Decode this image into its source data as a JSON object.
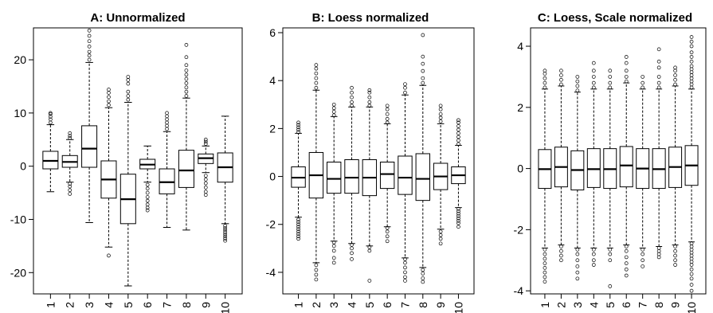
{
  "chart_data": [
    {
      "type": "boxplot",
      "title": "A: Unnormalized",
      "ylim": [
        -24,
        26
      ],
      "yticks": [
        -20,
        -10,
        0,
        10,
        20
      ],
      "categories": [
        "1",
        "2",
        "3",
        "4",
        "5",
        "6",
        "7",
        "8",
        "9",
        "10"
      ],
      "boxes": [
        {
          "q1": -0.5,
          "med": 1.0,
          "q3": 2.8,
          "lo": -4.8,
          "hi": 7.8,
          "out_lo": [],
          "out_hi": [
            8.2,
            8.8,
            9.3,
            9.8,
            10.0
          ]
        },
        {
          "q1": -0.2,
          "med": 0.8,
          "q3": 2.0,
          "lo": -3.0,
          "hi": 5.0,
          "out_lo": [
            -3.3,
            -3.8,
            -4.5,
            -5.2
          ],
          "out_hi": [
            5.3,
            5.7,
            6.2
          ]
        },
        {
          "q1": -0.2,
          "med": 3.3,
          "q3": 7.6,
          "lo": -10.6,
          "hi": 19.5,
          "out_lo": [],
          "out_hi": [
            20.0,
            20.8,
            21.5,
            22.5,
            23.5,
            24.5,
            25.5
          ]
        },
        {
          "q1": -6.0,
          "med": -2.5,
          "q3": 1.0,
          "lo": -15.2,
          "hi": 11.0,
          "out_lo": [
            -16.8
          ],
          "out_hi": [
            11.5,
            12.2,
            13.0,
            13.8,
            14.4
          ]
        },
        {
          "q1": -10.8,
          "med": -6.2,
          "q3": -1.5,
          "lo": -22.5,
          "hi": 12.0,
          "out_lo": [],
          "out_hi": [
            12.5,
            13.2,
            14.0,
            15.5,
            16.2,
            16.8
          ]
        },
        {
          "q1": -0.5,
          "med": 0.3,
          "q3": 1.3,
          "lo": -3.0,
          "hi": 3.8,
          "out_lo": [
            -3.5,
            -4.2,
            -5.0,
            -5.8,
            -6.5,
            -7.2,
            -7.8,
            -8.3
          ],
          "out_hi": []
        },
        {
          "q1": -5.2,
          "med": -3.0,
          "q3": -0.5,
          "lo": -11.5,
          "hi": 6.5,
          "out_lo": [],
          "out_hi": [
            7.0,
            7.6,
            8.2,
            8.8,
            9.4,
            10.0
          ]
        },
        {
          "q1": -4.0,
          "med": -0.8,
          "q3": 3.0,
          "lo": -12.0,
          "hi": 12.8,
          "out_lo": [],
          "out_hi": [
            13.2,
            14.0,
            14.8,
            15.6,
            16.4,
            17.2,
            18.0,
            19.0,
            20.5,
            22.8
          ]
        },
        {
          "q1": 0.5,
          "med": 1.5,
          "q3": 2.3,
          "lo": -1.2,
          "hi": 3.8,
          "out_lo": [
            -1.8,
            -2.5,
            -3.2,
            -4.0,
            -4.8,
            -5.4
          ],
          "out_hi": [
            4.2,
            4.6,
            5.0
          ]
        },
        {
          "q1": -3.0,
          "med": -0.2,
          "q3": 2.5,
          "lo": -10.8,
          "hi": 9.4,
          "out_lo": [
            -11.2,
            -11.6,
            -12.0,
            -12.4,
            -12.8,
            -13.2,
            -13.6,
            -14.0
          ],
          "out_hi": []
        }
      ]
    },
    {
      "type": "boxplot",
      "title": "B: Loess normalized",
      "ylim": [
        -4.9,
        6.2
      ],
      "yticks": [
        -4,
        -2,
        0,
        2,
        4,
        6
      ],
      "categories": [
        "1",
        "2",
        "3",
        "4",
        "5",
        "6",
        "7",
        "8",
        "9",
        "10"
      ],
      "boxes": [
        {
          "q1": -0.45,
          "med": -0.05,
          "q3": 0.4,
          "lo": -1.7,
          "hi": 1.8,
          "out_lo": [
            -1.8,
            -1.9,
            -2.0,
            -2.1,
            -2.2,
            -2.3,
            -2.4,
            -2.5,
            -2.6
          ],
          "out_hi": [
            1.85,
            1.95,
            2.05,
            2.15,
            2.25
          ]
        },
        {
          "q1": -0.9,
          "med": 0.05,
          "q3": 1.0,
          "lo": -3.6,
          "hi": 3.6,
          "out_lo": [
            -3.7,
            -3.9,
            -4.1,
            -4.3
          ],
          "out_hi": [
            3.7,
            3.9,
            4.1,
            4.3,
            4.5,
            4.65
          ]
        },
        {
          "q1": -0.7,
          "med": -0.1,
          "q3": 0.6,
          "lo": -2.7,
          "hi": 2.5,
          "out_lo": [
            -2.75,
            -2.9,
            -3.1,
            -3.4,
            -3.6
          ],
          "out_hi": [
            2.55,
            2.7,
            2.85,
            3.0
          ]
        },
        {
          "q1": -0.7,
          "med": -0.05,
          "q3": 0.7,
          "lo": -2.8,
          "hi": 2.9,
          "out_lo": [
            -2.85,
            -3.0,
            -3.2,
            -3.45
          ],
          "out_hi": [
            2.95,
            3.1,
            3.3,
            3.5,
            3.7
          ]
        },
        {
          "q1": -0.8,
          "med": -0.05,
          "q3": 0.7,
          "lo": -2.9,
          "hi": 2.9,
          "out_lo": [
            -2.95,
            -3.1,
            -4.35
          ],
          "out_hi": [
            2.95,
            3.1,
            3.3,
            3.5,
            3.6
          ]
        },
        {
          "q1": -0.5,
          "med": 0.1,
          "q3": 0.6,
          "lo": -2.1,
          "hi": 2.2,
          "out_lo": [
            -2.15,
            -2.3,
            -2.5,
            -2.7
          ],
          "out_hi": [
            2.25,
            2.4,
            2.6,
            2.8,
            2.95
          ]
        },
        {
          "q1": -0.75,
          "med": -0.05,
          "q3": 0.85,
          "lo": -3.4,
          "hi": 3.4,
          "out_lo": [
            -3.45,
            -3.6,
            -3.8,
            -4.0,
            -4.2,
            -4.35
          ],
          "out_hi": [
            3.5,
            3.7,
            3.85
          ]
        },
        {
          "q1": -1.0,
          "med": -0.1,
          "q3": 0.95,
          "lo": -3.8,
          "hi": 3.8,
          "out_lo": [
            -3.9,
            -4.05,
            -4.25,
            -4.4
          ],
          "out_hi": [
            3.9,
            4.1,
            4.4,
            4.7,
            5.0,
            5.9
          ]
        },
        {
          "q1": -0.55,
          "med": 0.0,
          "q3": 0.55,
          "lo": -2.2,
          "hi": 2.2,
          "out_lo": [
            -2.3,
            -2.45,
            -2.6,
            -2.8
          ],
          "out_hi": [
            2.3,
            2.45,
            2.6,
            2.8,
            2.95
          ]
        },
        {
          "q1": -0.3,
          "med": 0.05,
          "q3": 0.4,
          "lo": -1.3,
          "hi": 1.3,
          "out_lo": [
            -1.35,
            -1.45,
            -1.55,
            -1.65,
            -1.75,
            -1.85,
            -1.95,
            -2.1
          ],
          "out_hi": [
            1.35,
            1.5,
            1.65,
            1.8,
            1.95,
            2.1,
            2.25,
            2.35
          ]
        }
      ]
    },
    {
      "type": "boxplot",
      "title": "C: Loess, Scale normalized",
      "ylim": [
        -4.1,
        4.6
      ],
      "yticks": [
        -4,
        -2,
        0,
        2,
        4
      ],
      "categories": [
        "1",
        "2",
        "3",
        "4",
        "5",
        "6",
        "7",
        "8",
        "9",
        "10"
      ],
      "boxes": [
        {
          "q1": -0.65,
          "med": -0.02,
          "q3": 0.62,
          "lo": -2.6,
          "hi": 2.6,
          "out_lo": [
            -2.65,
            -2.8,
            -2.95,
            -3.1,
            -3.25,
            -3.4,
            -3.55,
            -3.7
          ],
          "out_hi": [
            2.65,
            2.8,
            2.95,
            3.1,
            3.2
          ]
        },
        {
          "q1": -0.6,
          "med": 0.05,
          "q3": 0.7,
          "lo": -2.5,
          "hi": 2.7,
          "out_lo": [
            -2.55,
            -2.7,
            -2.85,
            -3.0
          ],
          "out_hi": [
            2.75,
            2.9,
            3.05,
            3.2
          ]
        },
        {
          "q1": -0.7,
          "med": -0.05,
          "q3": 0.58,
          "lo": -2.6,
          "hi": 2.5,
          "out_lo": [
            -2.65,
            -2.8,
            -3.0,
            -3.2,
            -3.4,
            -3.6
          ],
          "out_hi": [
            2.55,
            2.7,
            2.85,
            3.0
          ]
        },
        {
          "q1": -0.62,
          "med": -0.02,
          "q3": 0.65,
          "lo": -2.6,
          "hi": 2.6,
          "out_lo": [
            -2.65,
            -2.8,
            -3.0,
            -3.15
          ],
          "out_hi": [
            2.65,
            2.8,
            3.0,
            3.2,
            3.45
          ]
        },
        {
          "q1": -0.65,
          "med": -0.02,
          "q3": 0.65,
          "lo": -2.6,
          "hi": 2.6,
          "out_lo": [
            -2.65,
            -2.8,
            -3.0,
            -3.85
          ],
          "out_hi": [
            2.65,
            2.8,
            3.0,
            3.2
          ]
        },
        {
          "q1": -0.6,
          "med": 0.1,
          "q3": 0.72,
          "lo": -2.5,
          "hi": 2.8,
          "out_lo": [
            -2.55,
            -2.7,
            -2.9,
            -3.1,
            -3.3,
            -3.5
          ],
          "out_hi": [
            2.85,
            3.0,
            3.2,
            3.45,
            3.65
          ]
        },
        {
          "q1": -0.65,
          "med": 0.0,
          "q3": 0.65,
          "lo": -2.6,
          "hi": 2.6,
          "out_lo": [
            -2.65,
            -2.8,
            -3.0,
            -3.2
          ],
          "out_hi": [
            2.65,
            2.8,
            3.0
          ]
        },
        {
          "q1": -0.65,
          "med": -0.02,
          "q3": 0.65,
          "lo": -2.55,
          "hi": 2.6,
          "out_lo": [
            -2.6,
            -2.7,
            -2.8,
            -2.9
          ],
          "out_hi": [
            2.65,
            2.8,
            3.0,
            3.3,
            3.5,
            3.9
          ]
        },
        {
          "q1": -0.62,
          "med": 0.05,
          "q3": 0.7,
          "lo": -2.5,
          "hi": 2.7,
          "out_lo": [
            -2.55,
            -2.7,
            -2.85,
            -3.0,
            -3.15
          ],
          "out_hi": [
            2.75,
            2.9,
            3.05,
            3.2,
            3.3
          ]
        },
        {
          "q1": -0.55,
          "med": 0.1,
          "q3": 0.75,
          "lo": -2.4,
          "hi": 2.6,
          "out_lo": [
            -2.45,
            -2.55,
            -2.65,
            -2.75,
            -2.85,
            -2.95,
            -3.05,
            -3.15,
            -3.3,
            -3.45,
            -3.6,
            -3.8,
            -4.0
          ],
          "out_hi": [
            2.65,
            2.75,
            2.85,
            2.95,
            3.05,
            3.15,
            3.25,
            3.35,
            3.5,
            3.65,
            3.8,
            4.0,
            4.15,
            4.3
          ]
        }
      ]
    }
  ]
}
